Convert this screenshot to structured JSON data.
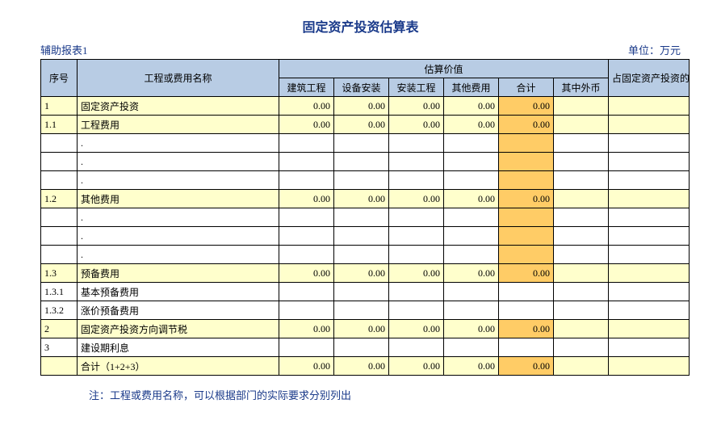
{
  "title": "固定资产投资估算表",
  "meta": {
    "left": "辅助报表1",
    "right": "单位：万元"
  },
  "headers": {
    "seq": "序号",
    "name": "工程或费用名称",
    "est_group": "估算价值",
    "ratio": "占固定资产投资的比例（%）",
    "sub": [
      "建筑工程",
      "设备安装",
      "安装工程",
      "其他费用",
      "合计",
      "其中外币"
    ]
  },
  "rows": [
    {
      "seq": "1",
      "name": "固定资产投资",
      "vals": [
        "0.00",
        "0.00",
        "0.00",
        "0.00",
        "0.00",
        "",
        ""
      ],
      "yellow": true,
      "hlTotal": true
    },
    {
      "seq": "1.1",
      "name": "工程费用",
      "vals": [
        "0.00",
        "0.00",
        "0.00",
        "0.00",
        "0.00",
        "",
        ""
      ],
      "yellow": true,
      "hlTotal": true
    },
    {
      "seq": "",
      "name": ".",
      "vals": [
        "",
        "",
        "",
        "",
        "",
        "",
        ""
      ],
      "yellow": false,
      "hlTotal": true
    },
    {
      "seq": "",
      "name": ".",
      "vals": [
        "",
        "",
        "",
        "",
        "",
        "",
        ""
      ],
      "yellow": false,
      "hlTotal": true
    },
    {
      "seq": "",
      "name": ".",
      "vals": [
        "",
        "",
        "",
        "",
        "",
        "",
        ""
      ],
      "yellow": false,
      "hlTotal": true
    },
    {
      "seq": "1.2",
      "name": "其他费用",
      "vals": [
        "0.00",
        "0.00",
        "0.00",
        "0.00",
        "0.00",
        "",
        ""
      ],
      "yellow": true,
      "hlTotal": true
    },
    {
      "seq": "",
      "name": ".",
      "vals": [
        "",
        "",
        "",
        "",
        "",
        "",
        ""
      ],
      "yellow": false,
      "hlTotal": true
    },
    {
      "seq": "",
      "name": ".",
      "vals": [
        "",
        "",
        "",
        "",
        "",
        "",
        ""
      ],
      "yellow": false,
      "hlTotal": true
    },
    {
      "seq": "",
      "name": ".",
      "vals": [
        "",
        "",
        "",
        "",
        "",
        "",
        ""
      ],
      "yellow": false,
      "hlTotal": true
    },
    {
      "seq": "1.3",
      "name": "预备费用",
      "vals": [
        "0.00",
        "0.00",
        "0.00",
        "0.00",
        "0.00",
        "",
        ""
      ],
      "yellow": true,
      "hlTotal": true
    },
    {
      "seq": "1.3.1",
      "name": "基本预备费用",
      "vals": [
        "",
        "",
        "",
        "",
        "",
        "",
        ""
      ],
      "yellow": false,
      "hlTotal": false
    },
    {
      "seq": "1.3.2",
      "name": "涨价预备费用",
      "vals": [
        "",
        "",
        "",
        "",
        "",
        "",
        ""
      ],
      "yellow": false,
      "hlTotal": false
    },
    {
      "seq": "2",
      "name": "固定资产投资方向调节税",
      "vals": [
        "0.00",
        "0.00",
        "0.00",
        "0.00",
        "0.00",
        "",
        ""
      ],
      "yellow": true,
      "hlTotal": true
    },
    {
      "seq": "3",
      "name": "建设期利息",
      "vals": [
        "",
        "",
        "",
        "",
        "",
        "",
        ""
      ],
      "yellow": false,
      "hlTotal": false
    },
    {
      "seq": "",
      "name": "合计（1+2+3）",
      "vals": [
        "0.00",
        "0.00",
        "0.00",
        "0.00",
        "0.00",
        "",
        ""
      ],
      "yellow": true,
      "hlTotal": true
    }
  ],
  "footnote": "注：工程或费用名称，可以根据部门的实际要求分别列出",
  "colors": {
    "header_bg": "#b8cce4",
    "row_yellow": "#ffffcc",
    "total_highlight": "#ffcc66",
    "title_color": "#1a3a8a",
    "border": "#000000"
  }
}
